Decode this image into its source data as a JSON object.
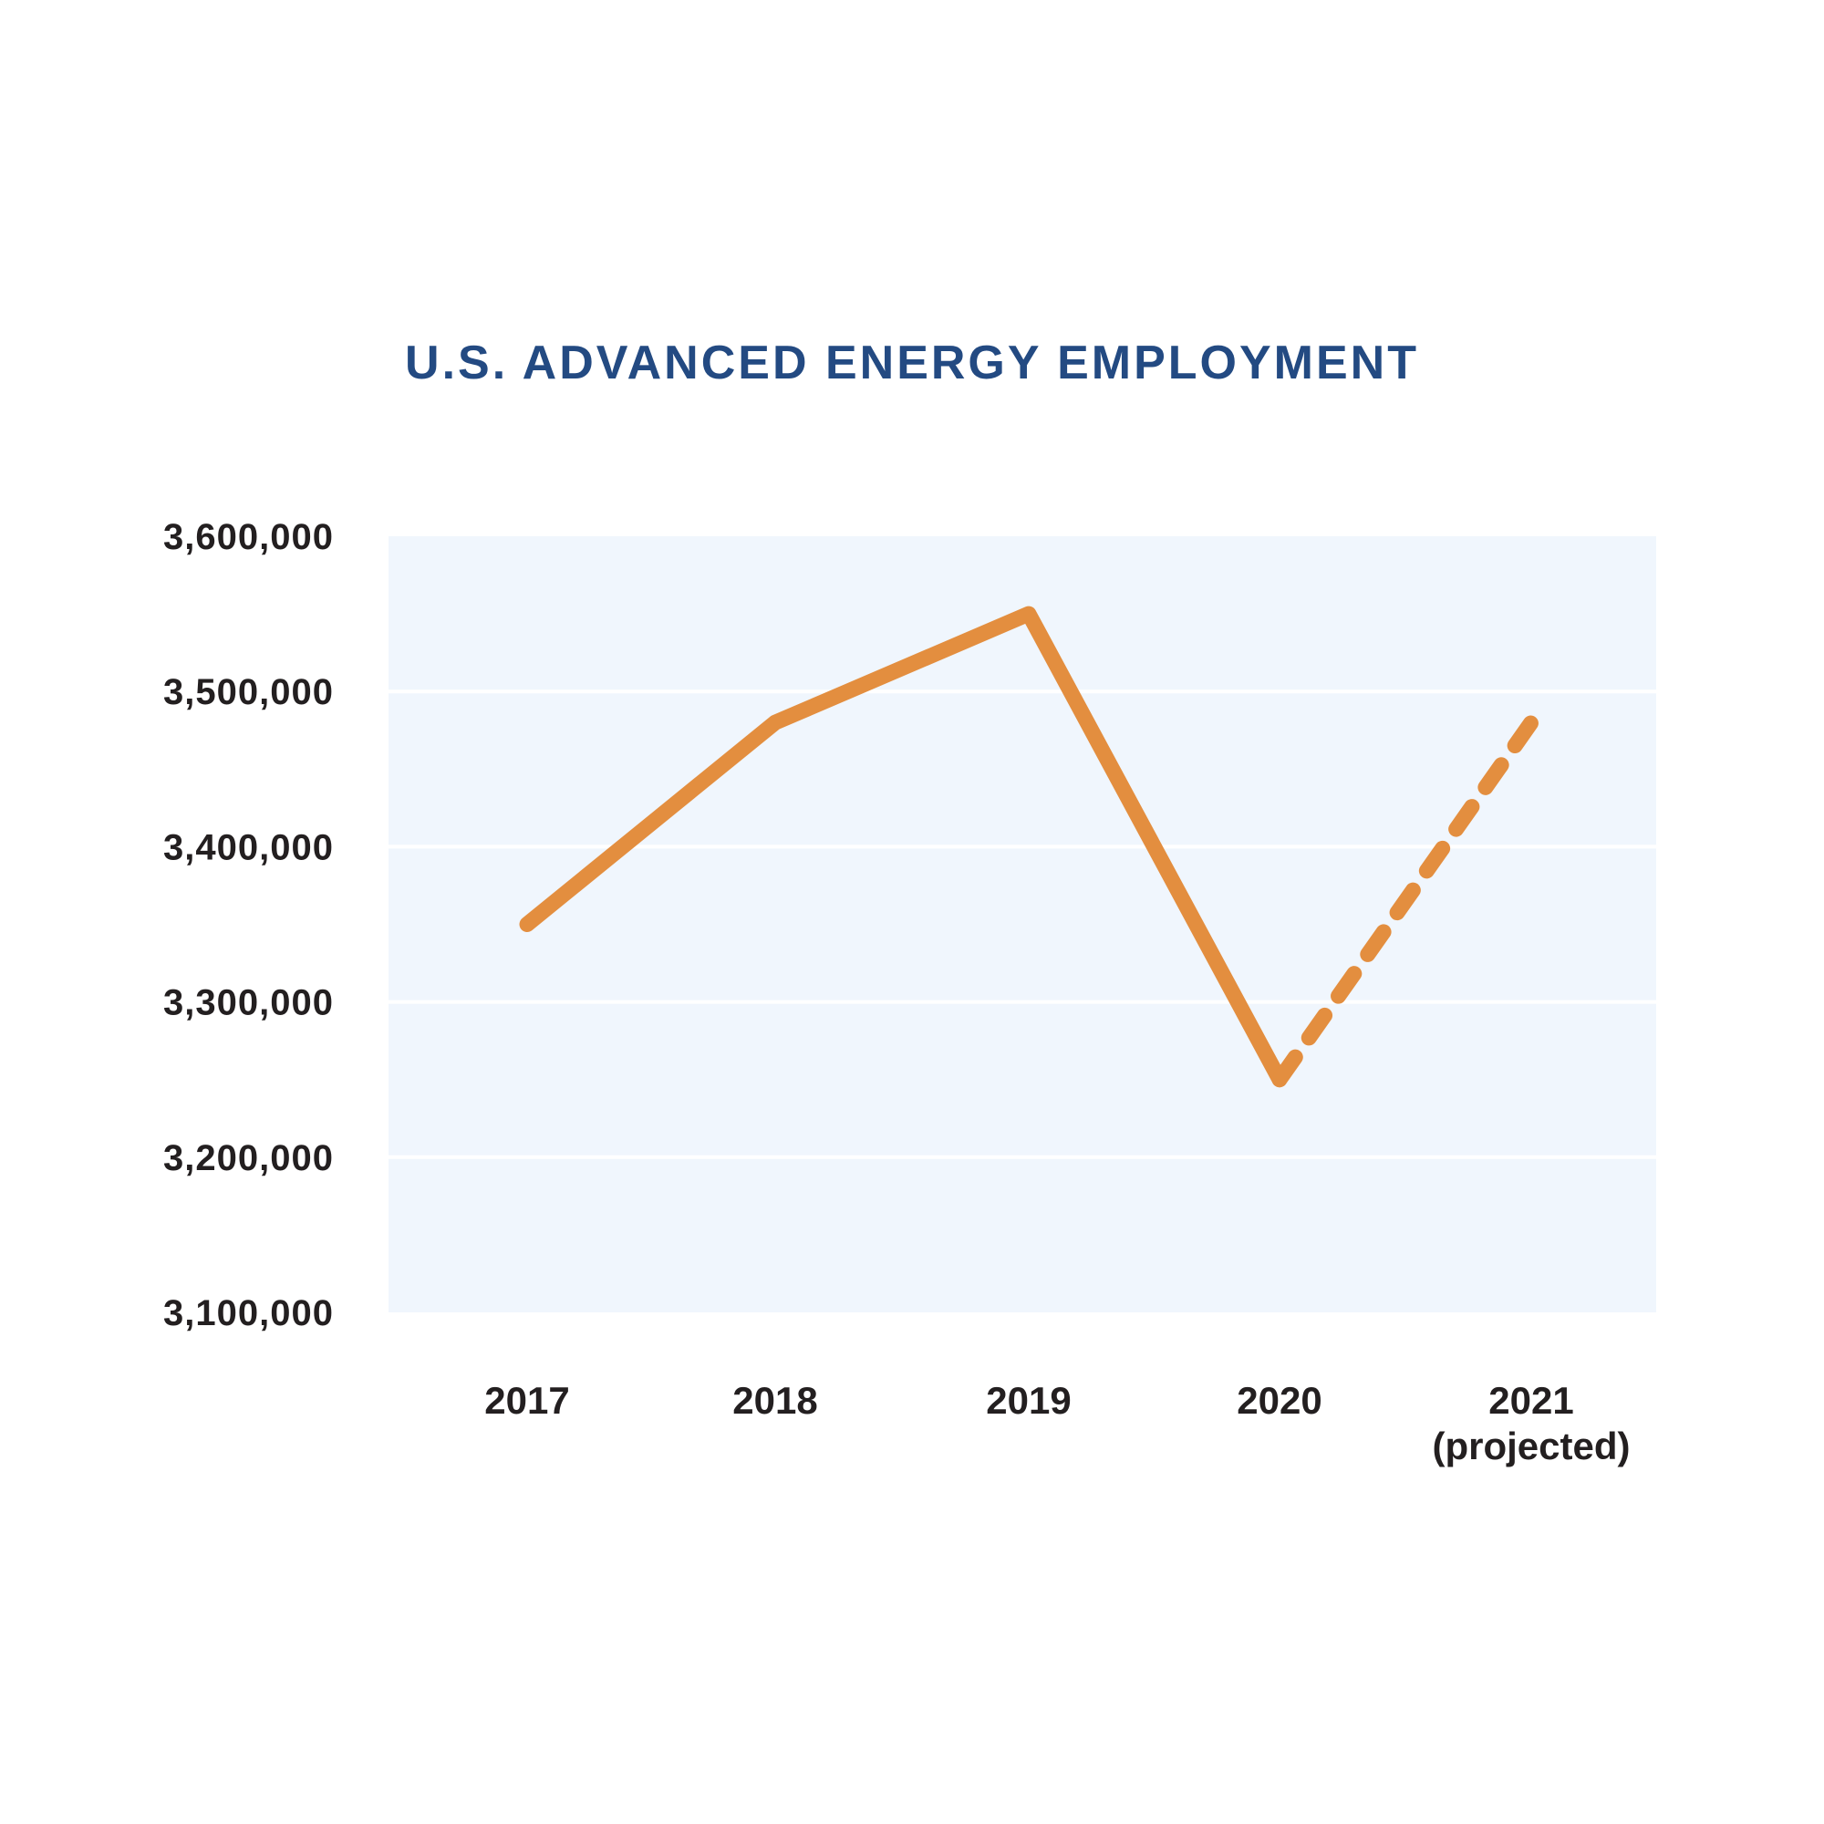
{
  "chart_data": {
    "type": "line",
    "title": "U.S. ADVANCED ENERGY EMPLOYMENT",
    "xlabel": "",
    "ylabel": "",
    "categories": [
      "2017",
      "2018",
      "2019",
      "2020",
      "2021"
    ],
    "category_sublabels": [
      "",
      "",
      "",
      "",
      "(projected)"
    ],
    "series": [
      {
        "name": "Advanced energy employment",
        "values": [
          3350000,
          3480000,
          3550000,
          3250000,
          3480000
        ],
        "projected_from_index": 3
      }
    ],
    "ylim": [
      3100000,
      3600000
    ],
    "yticks": [
      3600000,
      3500000,
      3400000,
      3300000,
      3200000,
      3100000
    ],
    "ytick_labels": [
      "3,600,000",
      "3,500,000",
      "3,400,000",
      "3,300,000",
      "3,200,000",
      "3,100,000"
    ],
    "grid": true,
    "legend": "none",
    "colors": {
      "line": "#e38e3f",
      "title": "#234a82",
      "plot_bg": "#f0f6fd",
      "text": "#231f20"
    }
  }
}
